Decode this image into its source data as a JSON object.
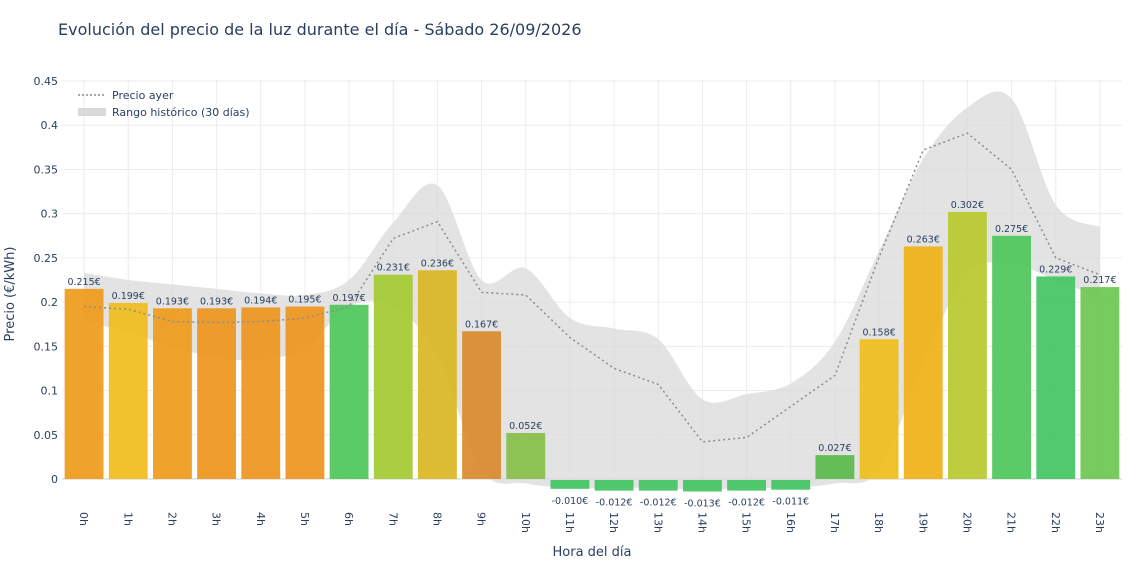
{
  "chart_data": {
    "type": "bar",
    "title": "Evolución del precio de la luz durante el día - Sábado 26/09/2026",
    "xlabel": "Hora del día",
    "ylabel": "Precio (€/kWh)",
    "ylim": [
      -0.02,
      0.45
    ],
    "yticks": [
      0,
      0.05,
      0.1,
      0.15,
      0.2,
      0.25,
      0.3,
      0.35,
      0.4,
      0.45
    ],
    "ytick_labels": [
      "0",
      "0.05",
      "0.1",
      "0.15",
      "0.2",
      "0.25",
      "0.3",
      "0.35",
      "0.4",
      "0.45"
    ],
    "grid": true,
    "legend_position": "top-left",
    "categories": [
      "0h",
      "1h",
      "2h",
      "3h",
      "4h",
      "5h",
      "6h",
      "7h",
      "8h",
      "9h",
      "10h",
      "11h",
      "12h",
      "13h",
      "14h",
      "15h",
      "16h",
      "17h",
      "18h",
      "19h",
      "20h",
      "21h",
      "22h",
      "23h"
    ],
    "series": [
      {
        "values": [
          0.215,
          0.199,
          0.193,
          0.193,
          0.194,
          0.195,
          0.197,
          0.231,
          0.236,
          0.167,
          0.052,
          -0.01,
          -0.012,
          -0.012,
          -0.013,
          -0.012,
          -0.011,
          0.027,
          0.158,
          0.263,
          0.302,
          0.275,
          0.229,
          0.217
        ],
        "data_labels": [
          "0.215€",
          "0.199€",
          "0.193€",
          "0.193€",
          "0.194€",
          "0.195€",
          "0.197€",
          "0.231€",
          "0.236€",
          "0.167€",
          "0.052€",
          "-0.010€",
          "-0.012€",
          "-0.012€",
          "-0.013€",
          "-0.012€",
          "-0.011€",
          "0.027€",
          "0.158€",
          "0.263€",
          "0.302€",
          "0.275€",
          "0.229€",
          "0.217€"
        ],
        "colors": [
          "#ee9b1b",
          "#f0bd1a",
          "#ee9b1b",
          "#ee951d",
          "#ee951d",
          "#ee951d",
          "#4cc75a",
          "#a4c932",
          "#d8b622",
          "#d98a2e",
          "#86bf49",
          "#41c463",
          "#41c463",
          "#41c463",
          "#41c463",
          "#41c463",
          "#41c463",
          "#5aba4c",
          "#efbd1a",
          "#efb217",
          "#b7c92c",
          "#4cc75a",
          "#41c463",
          "#6cc74f"
        ]
      },
      {
        "name": "Precio ayer",
        "values": [
          0.195,
          0.192,
          0.178,
          0.177,
          0.178,
          0.182,
          0.195,
          0.272,
          0.291,
          0.211,
          0.208,
          0.16,
          0.125,
          0.107,
          0.042,
          0.047,
          0.082,
          0.117,
          0.251,
          0.372,
          0.391,
          0.35,
          0.25,
          0.231
        ],
        "style": "dotted",
        "color": "#8c8c8c"
      },
      {
        "name": "Rango histórico (30 días)",
        "upper": [
          0.233,
          0.225,
          0.22,
          0.215,
          0.21,
          0.208,
          0.225,
          0.29,
          0.332,
          0.225,
          0.238,
          0.182,
          0.17,
          0.158,
          0.09,
          0.096,
          0.108,
          0.155,
          0.258,
          0.362,
          0.42,
          0.43,
          0.31,
          0.285
        ],
        "lower": [
          0.18,
          0.165,
          0.15,
          0.137,
          0.135,
          0.148,
          0.195,
          0.195,
          0.14,
          0.01,
          -0.005,
          -0.01,
          -0.01,
          -0.01,
          -0.012,
          -0.01,
          -0.01,
          -0.005,
          0.01,
          0.132,
          0.232,
          0.243,
          0.225,
          0.205
        ],
        "style": "band",
        "color": "#d9d9d9"
      }
    ]
  }
}
